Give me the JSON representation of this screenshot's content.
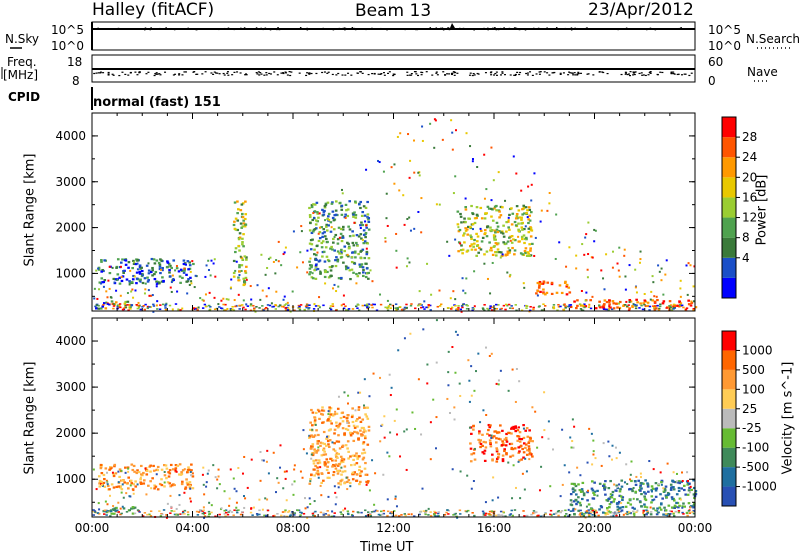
{
  "header": {
    "station": "Halley (fitACF)",
    "beam": "Beam 13",
    "date": "23/Apr/2012"
  },
  "strips": {
    "nsky_label": "N.Sky",
    "nsky_ticks": [
      "10^5",
      "10^0"
    ],
    "nsearch_ticks": [
      "10^5",
      "10^0"
    ],
    "nsearch_label": "N.Search",
    "freq_label": "Freq.",
    "freq_unit": "[MHz]",
    "freq_ticks": [
      "18",
      "8"
    ],
    "nave_ticks": [
      "60",
      "0"
    ],
    "nave_label": "Nave",
    "cpid_label": "CPID",
    "cpid_value": "normal (fast) 151"
  },
  "chart_data": [
    {
      "type": "heatmap",
      "title": "",
      "xlabel": "Time UT",
      "ylabel": "Slant Range [km]",
      "x_ticks": [
        "00:00",
        "04:00",
        "08:00",
        "12:00",
        "16:00",
        "20:00",
        "00:00"
      ],
      "x_range_hours": [
        0,
        24
      ],
      "y_ticks": [
        "4000",
        "3000",
        "2000",
        "1000"
      ],
      "ylim": [
        180,
        4500
      ],
      "colorbar": {
        "label": "Power [dB]",
        "ticks": [
          "28",
          "24",
          "20",
          "16",
          "12",
          "8",
          "4"
        ],
        "colors": [
          "#0000ff",
          "#1a4fc8",
          "#3a7a3a",
          "#4fa24f",
          "#9acd32",
          "#e8c800",
          "#ff9900",
          "#ff5500",
          "#ff0000"
        ]
      },
      "regions": [
        {
          "t0": 0.1,
          "t1": 1.7,
          "r0": 250,
          "r1": 420,
          "value": "high-low mix"
        },
        {
          "t0": 0.2,
          "t1": 4.0,
          "r0": 800,
          "r1": 1350,
          "value": "low"
        },
        {
          "t0": 5.6,
          "t1": 6.1,
          "r0": 700,
          "r1": 2600,
          "value": "mid"
        },
        {
          "t0": 8.6,
          "t1": 11.0,
          "r0": 900,
          "r1": 2600,
          "value": "low-mid"
        },
        {
          "t0": 14.5,
          "t1": 17.5,
          "r0": 1400,
          "r1": 2500,
          "value": "mid"
        },
        {
          "t0": 17.5,
          "t1": 19.0,
          "r0": 550,
          "r1": 850,
          "value": "high"
        },
        {
          "t0": 19.0,
          "t1": 24.0,
          "r0": 250,
          "r1": 450,
          "value": "high"
        }
      ]
    },
    {
      "type": "heatmap",
      "title": "",
      "xlabel": "Time UT",
      "ylabel": "Slant Range [km]",
      "x_ticks": [
        "00:00",
        "04:00",
        "08:00",
        "12:00",
        "16:00",
        "20:00",
        "00:00"
      ],
      "x_range_hours": [
        0,
        24
      ],
      "y_ticks": [
        "4000",
        "3000",
        "2000",
        "1000"
      ],
      "ylim": [
        180,
        4500
      ],
      "colorbar": {
        "label": "Velocity [m s^-1]",
        "ticks": [
          "1000",
          "500",
          "100",
          "25",
          "-25",
          "-100",
          "-500",
          "-1000"
        ],
        "colors": [
          "#2850b4",
          "#1f6fa0",
          "#3f8a5a",
          "#66bb33",
          "#bbbbbb",
          "#ffcc55",
          "#ff9933",
          "#ff6600",
          "#ff0000"
        ]
      },
      "regions": [
        {
          "t0": 0.1,
          "t1": 1.7,
          "r0": 250,
          "r1": 420,
          "value": "green"
        },
        {
          "t0": 0.2,
          "t1": 4.0,
          "r0": 800,
          "r1": 1350,
          "value": "orange"
        },
        {
          "t0": 8.6,
          "t1": 11.0,
          "r0": 900,
          "r1": 2600,
          "value": "orange"
        },
        {
          "t0": 15.0,
          "t1": 17.5,
          "r0": 1400,
          "r1": 2200,
          "value": "red-orange"
        },
        {
          "t0": 19.0,
          "t1": 24.0,
          "r0": 250,
          "r1": 1000,
          "value": "green-blue"
        }
      ]
    }
  ]
}
